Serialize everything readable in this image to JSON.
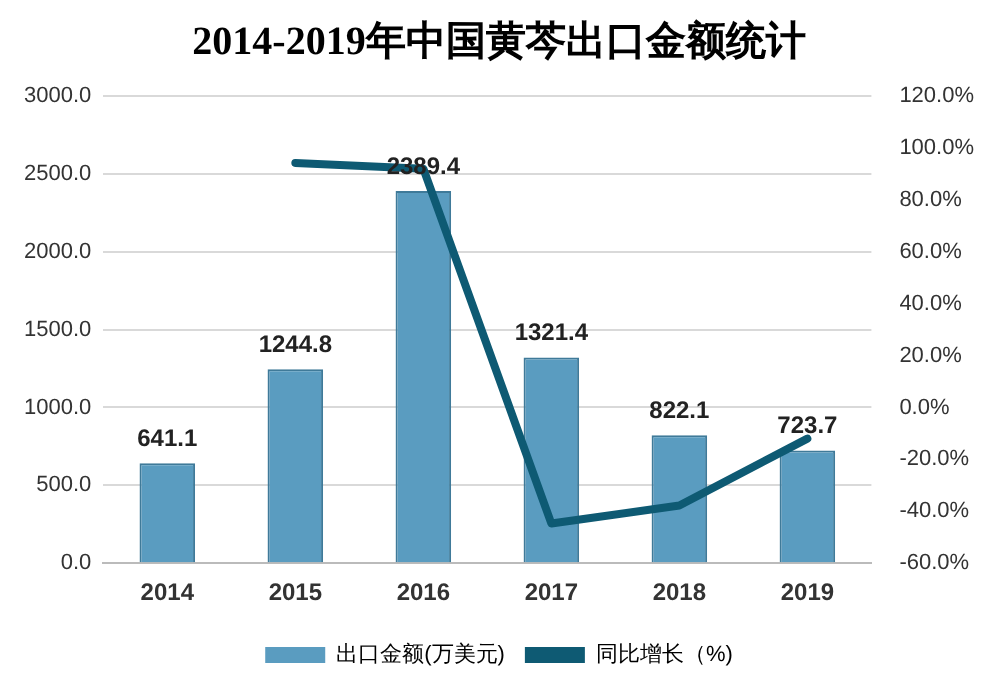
{
  "chart_data": {
    "type": "bar",
    "title": "2014-2019年中国黄芩出口金额统计",
    "categories": [
      "2014",
      "2015",
      "2016",
      "2017",
      "2018",
      "2019"
    ],
    "series": [
      {
        "name": "出口金额(万美元)",
        "color": "#5a9cc0",
        "values": [
          641.1,
          1244.8,
          2389.4,
          1321.4,
          822.1,
          723.7
        ],
        "value_labels": [
          "641.1",
          "1244.8",
          "2389.4",
          "1321.4",
          "822.1",
          "723.7"
        ]
      },
      {
        "name": "同比增长（%)",
        "type": "line",
        "axis": "y2",
        "color": "#0e5a73",
        "values": [
          null,
          94.2,
          92.0,
          -44.7,
          -37.8,
          -12.0
        ]
      }
    ],
    "ylim": [
      0,
      3000
    ],
    "yticks": [
      {
        "value": 0,
        "label": "0.0"
      },
      {
        "value": 500,
        "label": "500.0"
      },
      {
        "value": 1000,
        "label": "1000.0"
      },
      {
        "value": 1500,
        "label": "1500.0"
      },
      {
        "value": 2000,
        "label": "2000.0"
      },
      {
        "value": 2500,
        "label": "2500.0"
      },
      {
        "value": 3000,
        "label": "3000.0"
      }
    ],
    "y2lim": [
      -60,
      120
    ],
    "y2ticks": [
      {
        "value": -60,
        "label": "-60.0%"
      },
      {
        "value": -40,
        "label": "-40.0%"
      },
      {
        "value": -20,
        "label": "-20.0%"
      },
      {
        "value": 0,
        "label": "0.0%"
      },
      {
        "value": 20,
        "label": "20.0%"
      },
      {
        "value": 40,
        "label": "40.0%"
      },
      {
        "value": 60,
        "label": "60.0%"
      },
      {
        "value": 80,
        "label": "80.0%"
      },
      {
        "value": 100,
        "label": "100.0%"
      },
      {
        "value": 120,
        "label": "120.0%"
      }
    ],
    "grid": "y",
    "legend": "bottom",
    "marker": "none",
    "line_style": "solid"
  }
}
